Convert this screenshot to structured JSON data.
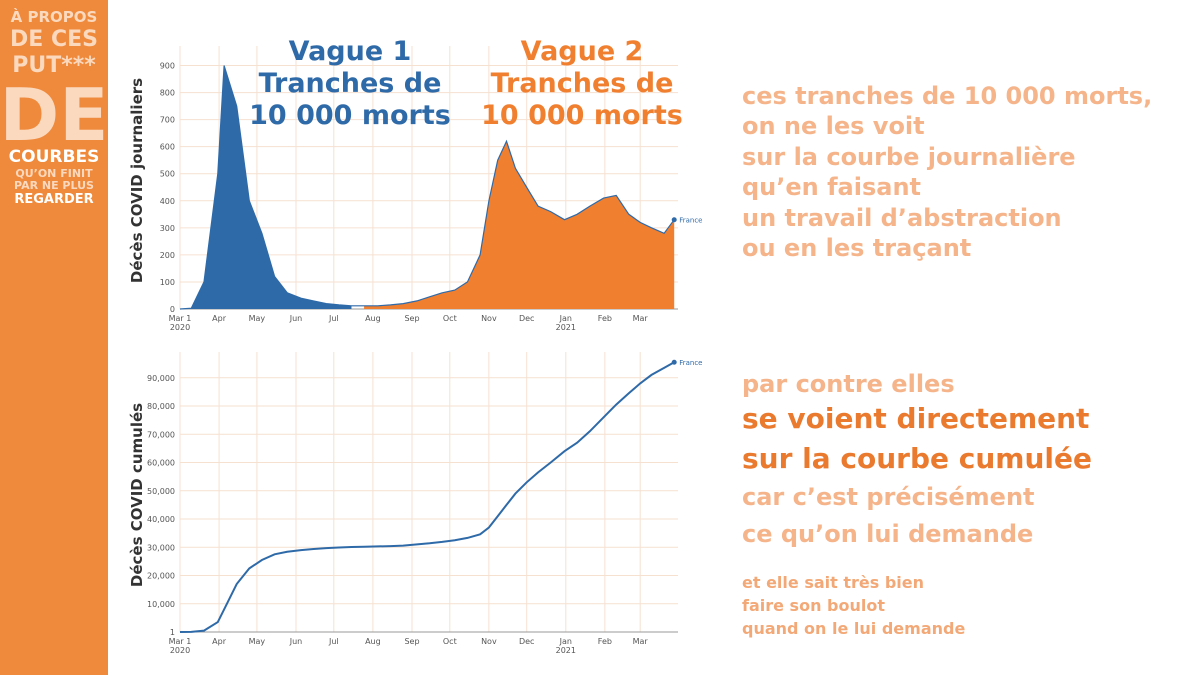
{
  "sidebar": {
    "lines": [
      "À PROPOS",
      "DE CES",
      "PUT***",
      "DE",
      "COURBES",
      "QU’ON FINIT",
      "PAR NE PLUS",
      "REGARDER"
    ]
  },
  "text_blocks": [
    {
      "lines": [
        "ces tranches de 10 000 morts,",
        "on ne les voit",
        "sur la courbe journalière",
        "qu’en faisant",
        "un travail d’abstraction",
        "ou en les traçant"
      ]
    },
    {
      "lines": [
        "par contre elles",
        "se voient directement",
        "sur la courbe cumulée",
        "car c’est précisément",
        "ce qu’on lui demande"
      ]
    },
    {
      "lines": [
        "et elle sait très bien",
        "faire son boulot",
        "quand on le lui demande"
      ]
    }
  ],
  "chart_data": [
    {
      "type": "area",
      "y_label": "Décès COVID journaliers",
      "annotations": [
        {
          "lines": [
            "Vague 1",
            "Tranches de",
            "10 000 morts"
          ],
          "color": "#2f6aa8"
        },
        {
          "lines": [
            "Vague 2",
            "Tranches de",
            "10 000 morts"
          ],
          "color": "#f07f2f"
        }
      ],
      "area_colors": [
        "#2f6aa8",
        "#f07f2f"
      ],
      "area_split": "2020-07-15",
      "x": [
        "2020-03-01",
        "2020-03-10",
        "2020-03-20",
        "2020-03-31",
        "2020-04-05",
        "2020-04-15",
        "2020-04-25",
        "2020-05-05",
        "2020-05-15",
        "2020-05-25",
        "2020-06-05",
        "2020-06-15",
        "2020-06-25",
        "2020-07-05",
        "2020-07-15",
        "2020-07-25",
        "2020-08-05",
        "2020-08-15",
        "2020-08-25",
        "2020-09-05",
        "2020-09-15",
        "2020-09-25",
        "2020-10-05",
        "2020-10-15",
        "2020-10-25",
        "2020-11-01",
        "2020-11-08",
        "2020-11-15",
        "2020-11-22",
        "2020-12-01",
        "2020-12-10",
        "2020-12-20",
        "2020-12-31",
        "2021-01-10",
        "2021-01-20",
        "2021-01-31",
        "2021-02-10",
        "2021-02-20",
        "2021-03-01",
        "2021-03-10",
        "2021-03-20",
        "2021-03-28"
      ],
      "series": [
        {
          "name": "France",
          "color": "#2f6aa8",
          "values": [
            0,
            3,
            100,
            500,
            900,
            750,
            400,
            280,
            120,
            60,
            40,
            30,
            20,
            15,
            12,
            12,
            12,
            15,
            20,
            30,
            45,
            60,
            70,
            100,
            200,
            400,
            550,
            620,
            520,
            450,
            380,
            360,
            330,
            350,
            380,
            410,
            420,
            350,
            320,
            300,
            280,
            330
          ]
        }
      ],
      "xlim": [
        "2020-03-01",
        "2021-03-31"
      ],
      "xticks": [
        {
          "value": "2020-03-01",
          "label": "Mar 1",
          "sublabel": "2020"
        },
        {
          "value": "2020-04-01",
          "label": "Apr"
        },
        {
          "value": "2020-05-01",
          "label": "May"
        },
        {
          "value": "2020-06-01",
          "label": "Jun"
        },
        {
          "value": "2020-07-01",
          "label": "Jul"
        },
        {
          "value": "2020-08-01",
          "label": "Aug"
        },
        {
          "value": "2020-09-01",
          "label": "Sep"
        },
        {
          "value": "2020-10-01",
          "label": "Oct"
        },
        {
          "value": "2020-11-01",
          "label": "Nov"
        },
        {
          "value": "2020-12-01",
          "label": "Dec"
        },
        {
          "value": "2021-01-01",
          "label": "Jan",
          "sublabel": "2021"
        },
        {
          "value": "2021-02-01",
          "label": "Feb"
        },
        {
          "value": "2021-03-01",
          "label": "Mar"
        }
      ],
      "ylim": [
        0,
        950
      ],
      "yticks": [
        0,
        100,
        200,
        300,
        400,
        500,
        600,
        700,
        800,
        900
      ],
      "grid": true
    },
    {
      "type": "line",
      "y_label": "Décès COVID cumulés",
      "x": [
        "2020-03-01",
        "2020-03-10",
        "2020-03-20",
        "2020-03-31",
        "2020-04-05",
        "2020-04-15",
        "2020-04-25",
        "2020-05-05",
        "2020-05-15",
        "2020-05-25",
        "2020-06-05",
        "2020-06-15",
        "2020-06-25",
        "2020-07-05",
        "2020-07-15",
        "2020-07-25",
        "2020-08-05",
        "2020-08-15",
        "2020-08-25",
        "2020-09-05",
        "2020-09-15",
        "2020-09-25",
        "2020-10-05",
        "2020-10-15",
        "2020-10-25",
        "2020-11-01",
        "2020-11-08",
        "2020-11-15",
        "2020-11-22",
        "2020-12-01",
        "2020-12-10",
        "2020-12-20",
        "2020-12-31",
        "2021-01-10",
        "2021-01-20",
        "2021-01-31",
        "2021-02-10",
        "2021-02-20",
        "2021-03-01",
        "2021-03-10",
        "2021-03-20",
        "2021-03-28"
      ],
      "series": [
        {
          "name": "France",
          "color": "#2f6aa8",
          "values": [
            1,
            30,
            500,
            3500,
            8000,
            17000,
            22500,
            25500,
            27500,
            28400,
            29000,
            29400,
            29700,
            29900,
            30100,
            30200,
            30300,
            30400,
            30600,
            31000,
            31400,
            31900,
            32500,
            33300,
            34600,
            37000,
            41000,
            45000,
            49000,
            53000,
            56500,
            60000,
            64000,
            67000,
            71000,
            76000,
            80500,
            84500,
            88000,
            91000,
            93500,
            95500
          ]
        }
      ],
      "xlim": [
        "2020-03-01",
        "2021-03-31"
      ],
      "xticks": [
        {
          "value": "2020-03-01",
          "label": "Mar 1",
          "sublabel": "2020"
        },
        {
          "value": "2020-04-01",
          "label": "Apr"
        },
        {
          "value": "2020-05-01",
          "label": "May"
        },
        {
          "value": "2020-06-01",
          "label": "Jun"
        },
        {
          "value": "2020-07-01",
          "label": "Jul"
        },
        {
          "value": "2020-08-01",
          "label": "Aug"
        },
        {
          "value": "2020-09-01",
          "label": "Sep"
        },
        {
          "value": "2020-10-01",
          "label": "Oct"
        },
        {
          "value": "2020-11-01",
          "label": "Nov"
        },
        {
          "value": "2020-12-01",
          "label": "Dec"
        },
        {
          "value": "2021-01-01",
          "label": "Jan",
          "sublabel": "2021"
        },
        {
          "value": "2021-02-01",
          "label": "Feb"
        },
        {
          "value": "2021-03-01",
          "label": "Mar"
        }
      ],
      "ylim": [
        0,
        97000
      ],
      "yticks": [
        1,
        {
          "value": 10000,
          "label": "10,000"
        },
        {
          "value": 20000,
          "label": "20,000"
        },
        {
          "value": 30000,
          "label": "30,000"
        },
        {
          "value": 40000,
          "label": "40,000"
        },
        {
          "value": 50000,
          "label": "50,000"
        },
        {
          "value": 60000,
          "label": "60,000"
        },
        {
          "value": 70000,
          "label": "70,000"
        },
        {
          "value": 80000,
          "label": "80,000"
        },
        {
          "value": 90000,
          "label": "90,000"
        }
      ],
      "grid": true
    }
  ]
}
